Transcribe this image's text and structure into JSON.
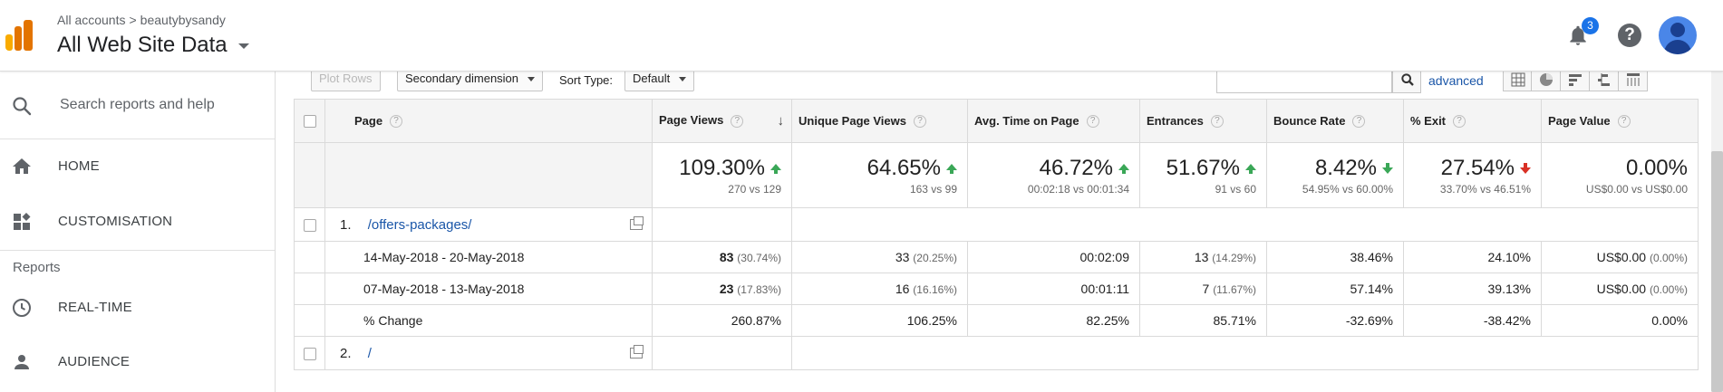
{
  "header": {
    "breadcrumb": [
      "All accounts",
      "beautybysandy"
    ],
    "breadcrumb_sep": ">",
    "property": "All Web Site Data",
    "notification_count": "3",
    "help_glyph": "?",
    "icons": [
      "analytics-logo-icon",
      "bell-icon",
      "help-icon",
      "avatar-icon"
    ]
  },
  "sidebar": {
    "search_placeholder": "Search reports and help",
    "items": [
      {
        "label": "HOME",
        "icon": "home-icon"
      },
      {
        "label": "CUSTOMISATION",
        "icon": "dashboard-icon"
      },
      {
        "label": "REAL-TIME",
        "icon": "clock-icon"
      },
      {
        "label": "AUDIENCE",
        "icon": "person-icon"
      }
    ],
    "section_label": "Reports"
  },
  "toolbar": {
    "plot_rows": "Plot Rows",
    "secondary_dimension": "Secondary dimension",
    "sort_type_label": "Sort Type:",
    "sort_type_value": "Default",
    "advanced": "advanced"
  },
  "table": {
    "columns": [
      "Page",
      "Page Views",
      "Unique Page Views",
      "Avg. Time on Page",
      "Entrances",
      "Bounce Rate",
      "% Exit",
      "Page Value"
    ],
    "sort_glyph": "↓",
    "totals": [
      {
        "value": "109.30%",
        "compare": "270 vs 129",
        "trend": "up"
      },
      {
        "value": "64.65%",
        "compare": "163 vs 99",
        "trend": "up"
      },
      {
        "value": "46.72%",
        "compare": "00:02:18 vs 00:01:34",
        "trend": "up"
      },
      {
        "value": "51.67%",
        "compare": "91 vs 60",
        "trend": "up"
      },
      {
        "value": "8.42%",
        "compare": "54.95% vs 60.00%",
        "trend": "down-good"
      },
      {
        "value": "27.54%",
        "compare": "33.70% vs 46.51%",
        "trend": "down-bad"
      },
      {
        "value": "0.00%",
        "compare": "US$0.00 vs US$0.00",
        "trend": "none"
      }
    ],
    "groups": [
      {
        "index": "1.",
        "page": "/offers-packages/",
        "rows": [
          {
            "label": "14-May-2018 - 20-May-2018",
            "cells": [
              [
                "83",
                "(30.74%)"
              ],
              [
                "33",
                "(20.25%)"
              ],
              [
                "00:02:09",
                ""
              ],
              [
                "13",
                "(14.29%)"
              ],
              [
                "38.46%",
                ""
              ],
              [
                "24.10%",
                ""
              ],
              [
                "US$0.00",
                "(0.00%)"
              ]
            ]
          },
          {
            "label": "07-May-2018 - 13-May-2018",
            "cells": [
              [
                "23",
                "(17.83%)"
              ],
              [
                "16",
                "(16.16%)"
              ],
              [
                "00:01:11",
                ""
              ],
              [
                "7",
                "(11.67%)"
              ],
              [
                "57.14%",
                ""
              ],
              [
                "39.13%",
                ""
              ],
              [
                "US$0.00",
                "(0.00%)"
              ]
            ]
          },
          {
            "label": "% Change",
            "cells": [
              [
                "260.87%",
                ""
              ],
              [
                "106.25%",
                ""
              ],
              [
                "82.25%",
                ""
              ],
              [
                "85.71%",
                ""
              ],
              [
                "-32.69%",
                ""
              ],
              [
                "-38.42%",
                ""
              ],
              [
                "0.00%",
                ""
              ]
            ]
          }
        ]
      },
      {
        "index": "2.",
        "page": "/"
      }
    ]
  }
}
